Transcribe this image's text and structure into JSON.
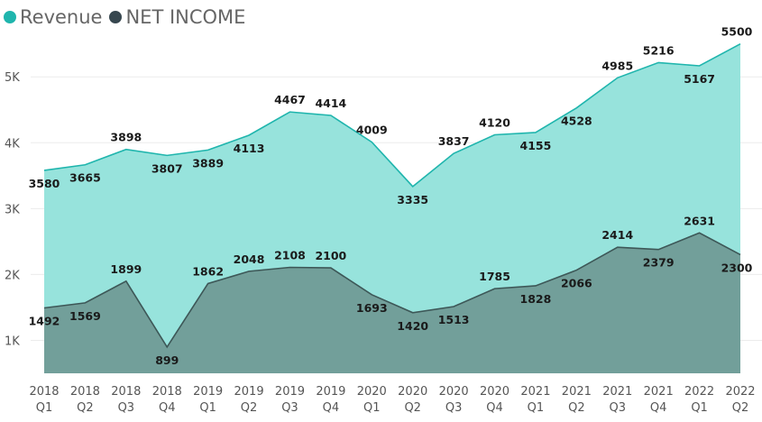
{
  "legend": [
    {
      "name": "Revenue",
      "color": "#1fb5ad"
    },
    {
      "name": "NET INCOME",
      "color": "#37474f"
    }
  ],
  "chart_data": {
    "type": "area",
    "categories": [
      {
        "year": "2018",
        "quarter": "Q1"
      },
      {
        "year": "2018",
        "quarter": "Q2"
      },
      {
        "year": "2018",
        "quarter": "Q3"
      },
      {
        "year": "2018",
        "quarter": "Q4"
      },
      {
        "year": "2019",
        "quarter": "Q1"
      },
      {
        "year": "2019",
        "quarter": "Q2"
      },
      {
        "year": "2019",
        "quarter": "Q3"
      },
      {
        "year": "2019",
        "quarter": "Q4"
      },
      {
        "year": "2020",
        "quarter": "Q1"
      },
      {
        "year": "2020",
        "quarter": "Q2"
      },
      {
        "year": "2020",
        "quarter": "Q3"
      },
      {
        "year": "2020",
        "quarter": "Q4"
      },
      {
        "year": "2021",
        "quarter": "Q1"
      },
      {
        "year": "2021",
        "quarter": "Q2"
      },
      {
        "year": "2021",
        "quarter": "Q3"
      },
      {
        "year": "2021",
        "quarter": "Q4"
      },
      {
        "year": "2022",
        "quarter": "Q1"
      },
      {
        "year": "2022",
        "quarter": "Q2"
      }
    ],
    "series": [
      {
        "name": "Revenue",
        "color": "#1fb5ad",
        "fill": "#97e3dc",
        "values": [
          3580,
          3665,
          3898,
          3807,
          3889,
          4113,
          4467,
          4414,
          4009,
          3335,
          3837,
          4120,
          4155,
          4528,
          4985,
          5216,
          5167,
          5500
        ]
      },
      {
        "name": "NET INCOME",
        "color": "#3d5757",
        "fill": "#729f9a",
        "values": [
          1492,
          1569,
          1899,
          899,
          1862,
          2048,
          2108,
          2100,
          1693,
          1420,
          1513,
          1785,
          1828,
          2066,
          2414,
          2379,
          2631,
          2300
        ]
      }
    ],
    "yticks": [
      {
        "value": 1000,
        "label": "1K"
      },
      {
        "value": 2000,
        "label": "2K"
      },
      {
        "value": 3000,
        "label": "3K"
      },
      {
        "value": 4000,
        "label": "4K"
      },
      {
        "value": 5000,
        "label": "5K"
      }
    ],
    "ylim": [
      500,
      5550
    ],
    "grid": true,
    "legend_position": "top-left"
  }
}
